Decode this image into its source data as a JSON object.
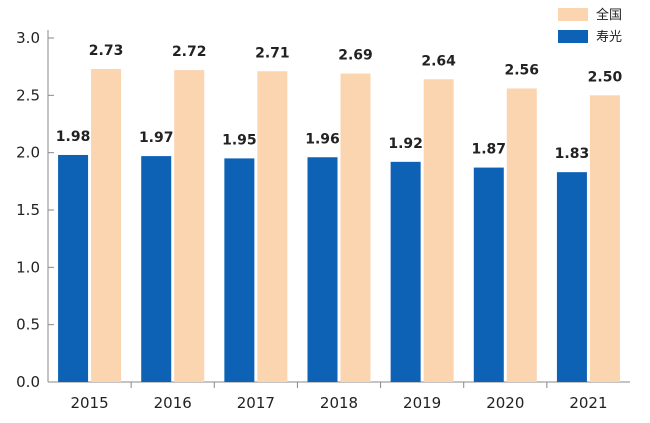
{
  "chart_data": {
    "type": "bar",
    "title": "",
    "xlabel": "",
    "ylabel": "",
    "categories": [
      "2015",
      "2016",
      "2017",
      "2018",
      "2019",
      "2020",
      "2021"
    ],
    "series": [
      {
        "name": "寿光",
        "color": "#0d62b6",
        "values": [
          1.98,
          1.97,
          1.95,
          1.96,
          1.92,
          1.87,
          1.83
        ],
        "labels": [
          "1.98",
          "1.97",
          "1.95",
          "1.96",
          "1.92",
          "1.87",
          "1.83"
        ]
      },
      {
        "name": "全国",
        "color": "#fbd4b0",
        "values": [
          2.73,
          2.72,
          2.71,
          2.69,
          2.64,
          2.56,
          2.5
        ],
        "labels": [
          "2.73",
          "2.72",
          "2.71",
          "2.69",
          "2.64",
          "2.56",
          "2.50"
        ]
      }
    ],
    "ylim": [
      0,
      3.0
    ],
    "yticks": [
      "0.0",
      "0.5",
      "1.0",
      "1.5",
      "2.0",
      "2.5",
      "3.0"
    ],
    "grid": false,
    "legend_position": "top-right",
    "axis_color": "#888888"
  }
}
